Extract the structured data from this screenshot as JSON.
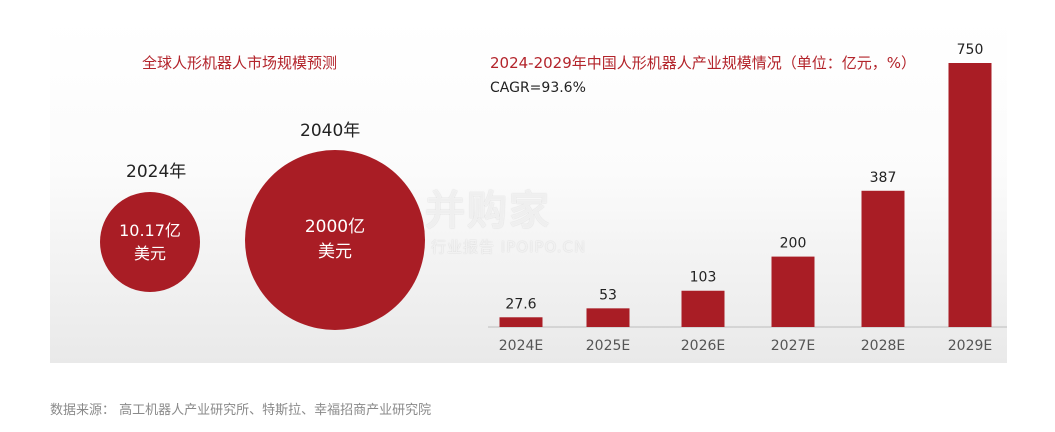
{
  "left_panel": {
    "title": "全球人形机器人市场规模预测",
    "bubbles": [
      {
        "year": "2024年",
        "value_line": "10.17亿",
        "unit_line": "美元",
        "value": 10.17
      },
      {
        "year": "2040年",
        "value_line": "2000亿",
        "unit_line": "美元",
        "value": 2000
      }
    ],
    "color": "#a91d25"
  },
  "chart_data": {
    "type": "bar",
    "title": "2024-2029年中国人形机器人产业规模情况（单位：亿元，%）",
    "annotation": "CAGR=93.6%",
    "categories": [
      "2024E",
      "2025E",
      "2026E",
      "2027E",
      "2028E",
      "2029E"
    ],
    "values": [
      27.6,
      53,
      103,
      200,
      387,
      750
    ],
    "value_labels": [
      "27.6",
      "53",
      "103",
      "200",
      "387",
      "750"
    ],
    "ylim": [
      0,
      750
    ],
    "bar_color": "#a91d25",
    "grid": false
  },
  "watermark": {
    "main": "并购家",
    "sub": "行业报告 IPOIPO.CN"
  },
  "source": "数据来源：   高工机器人产业研究所、特斯拉、幸福招商产业研究院"
}
